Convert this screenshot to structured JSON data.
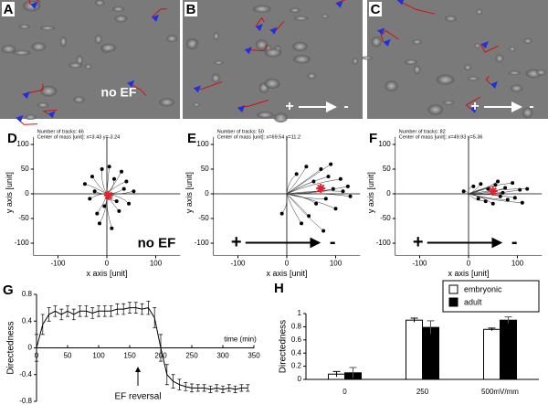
{
  "images": [
    {
      "label": "A",
      "caption": "no EF"
    },
    {
      "label": "B",
      "arrow_labels": [
        "+",
        "-"
      ]
    },
    {
      "label": "C",
      "arrow_labels": [
        "+",
        "-"
      ]
    }
  ],
  "chart_data": [
    {
      "type": "tracks",
      "panel_label": "D",
      "info": [
        "Number of tracks: 46",
        "Center of mass [unit]: x=3.43 y=-3.24"
      ],
      "x_label": "x axis [unit]",
      "y_label": "y axis [unit]",
      "x": [
        -45,
        -30,
        -20,
        -10,
        5,
        15,
        25,
        35,
        45,
        55,
        -35,
        -15,
        10,
        30,
        -5,
        20,
        40,
        -25
      ],
      "values": [
        20,
        35,
        -40,
        50,
        55,
        30,
        -35,
        10,
        -20,
        5,
        -10,
        -60,
        -70,
        45,
        -25,
        -15,
        25,
        5
      ],
      "color": "#000000",
      "center": {
        "x": 3.43,
        "y": -3.24,
        "color": "#e8202a"
      },
      "xlim": [
        -150,
        150
      ],
      "ylim": [
        -125,
        130
      ],
      "xticks": [
        -100,
        0,
        100
      ],
      "yticks": [
        -100,
        -50,
        0,
        50,
        100
      ],
      "annotation": "no EF"
    },
    {
      "type": "tracks",
      "panel_label": "E",
      "info": [
        "Number of tracks: 50",
        "Center of mass [unit]: x=69.54 y=11.2"
      ],
      "x_label": "x axis [unit]",
      "y_label": "y axis [unit]",
      "x": [
        20,
        40,
        55,
        70,
        85,
        95,
        110,
        125,
        60,
        80,
        100,
        45,
        30,
        75,
        115,
        90,
        130,
        -10
      ],
      "values": [
        40,
        55,
        25,
        50,
        35,
        10,
        30,
        15,
        -20,
        -10,
        -30,
        -45,
        -60,
        -75,
        5,
        60,
        -5,
        -40
      ],
      "color": "#000000",
      "center": {
        "x": 69.54,
        "y": 11.2,
        "color": "#e8202a"
      },
      "xlim": [
        -150,
        150
      ],
      "ylim": [
        -125,
        130
      ],
      "xticks": [
        -100,
        0,
        100
      ],
      "yticks": [
        -100,
        -50,
        0,
        50,
        100
      ],
      "arrow_labels": [
        "+",
        "-"
      ]
    },
    {
      "type": "tracks",
      "panel_label": "F",
      "info": [
        "Number of tracks: 82",
        "Center of mass [unit]: x=49.93 y=5.36"
      ],
      "x_label": "x axis [unit]",
      "y_label": "y axis [unit]",
      "x": [
        10,
        25,
        40,
        55,
        65,
        75,
        90,
        105,
        120,
        35,
        50,
        80,
        95,
        60,
        20,
        110,
        -10,
        70
      ],
      "values": [
        15,
        20,
        10,
        18,
        -5,
        12,
        22,
        8,
        10,
        -15,
        -20,
        -12,
        -8,
        25,
        -10,
        -18,
        5,
        2
      ],
      "color": "#000000",
      "center": {
        "x": 49.93,
        "y": 5.36,
        "color": "#e8202a"
      },
      "xlim": [
        -150,
        150
      ],
      "ylim": [
        -125,
        130
      ],
      "xticks": [
        -100,
        0,
        100
      ],
      "yticks": [
        -100,
        -50,
        0,
        50,
        100
      ],
      "arrow_labels": [
        "+",
        "-"
      ]
    },
    {
      "type": "line",
      "panel_label": "G",
      "y_label": "Directedness",
      "x_label": "time (min)",
      "annotation": "EF reversal",
      "annotation_x": 200,
      "x": [
        0,
        10,
        20,
        30,
        40,
        50,
        60,
        70,
        80,
        90,
        100,
        110,
        120,
        130,
        140,
        150,
        160,
        170,
        180,
        190,
        200,
        210,
        220,
        230,
        240,
        250,
        260,
        270,
        280,
        290,
        300,
        310,
        320,
        330,
        340
      ],
      "values": [
        0,
        0.35,
        0.5,
        0.55,
        0.5,
        0.55,
        0.5,
        0.55,
        0.55,
        0.52,
        0.55,
        0.55,
        0.55,
        0.58,
        0.58,
        0.6,
        0.6,
        0.58,
        0.6,
        0.45,
        0,
        -0.4,
        -0.5,
        -0.55,
        -0.58,
        -0.6,
        -0.6,
        -0.6,
        -0.62,
        -0.6,
        -0.62,
        -0.6,
        -0.62,
        -0.6,
        -0.6
      ],
      "errors": [
        0.2,
        0.15,
        0.1,
        0.08,
        0.08,
        0.08,
        0.08,
        0.08,
        0.08,
        0.08,
        0.08,
        0.08,
        0.08,
        0.08,
        0.08,
        0.08,
        0.08,
        0.08,
        0.1,
        0.15,
        0.2,
        0.15,
        0.1,
        0.08,
        0.06,
        0.06,
        0.05,
        0.05,
        0.05,
        0.05,
        0.05,
        0.05,
        0.05,
        0.05,
        0.05
      ],
      "color": "#000000",
      "xlim": [
        0,
        350
      ],
      "ylim": [
        -0.8,
        0.8
      ],
      "xticks": [
        0,
        50,
        100,
        150,
        200,
        250,
        300,
        350
      ],
      "yticks": [
        -0.8,
        -0.4,
        0,
        0.4,
        0.8
      ]
    },
    {
      "type": "bar",
      "panel_label": "H",
      "y_label": "Directedness",
      "categories": [
        "0",
        "250",
        "500mV/mm"
      ],
      "series": [
        {
          "name": "embryonic",
          "color": "#ffffff",
          "values": [
            0.08,
            0.9,
            0.76
          ],
          "errors": [
            0.04,
            0.03,
            0.02
          ]
        },
        {
          "name": "adult",
          "color": "#000000",
          "values": [
            0.1,
            0.79,
            0.9
          ],
          "errors": [
            0.08,
            0.1,
            0.05
          ]
        }
      ],
      "ylim": [
        0,
        1
      ],
      "yticks": [
        0,
        0.2,
        0.4,
        0.6,
        0.8,
        1
      ]
    }
  ]
}
